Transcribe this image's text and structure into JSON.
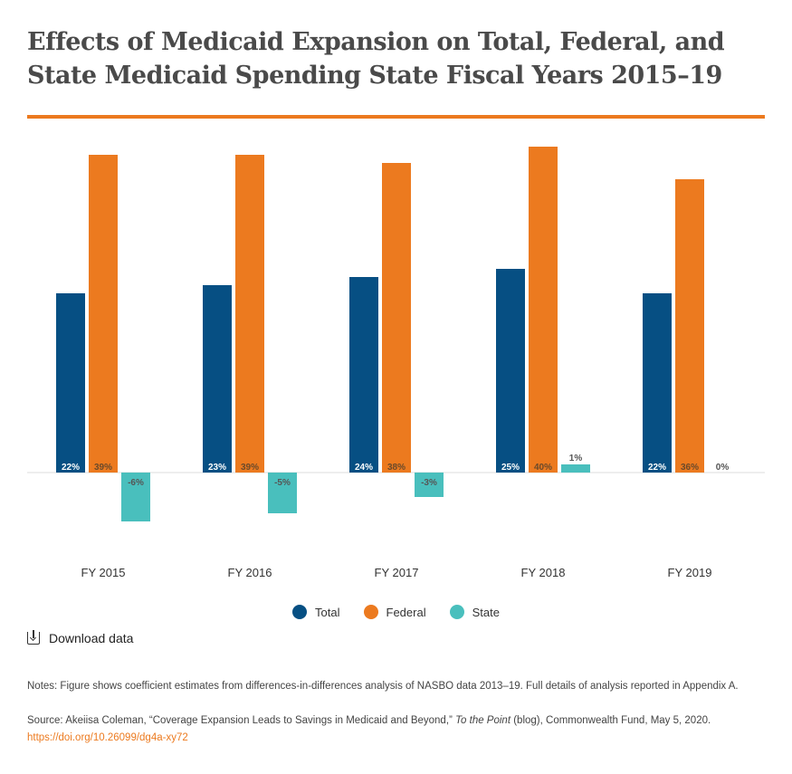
{
  "title": "Effects of Medicaid Expansion on Total, Federal, and State Medicaid Spending State Fiscal Years 2015–19",
  "colors": {
    "total": "#064f83",
    "federal": "#ec7a1f",
    "state": "#49bfbd",
    "accent_rule": "#ec7a1f"
  },
  "chart_data": {
    "type": "bar",
    "categories": [
      "FY 2015",
      "FY 2016",
      "FY 2017",
      "FY 2018",
      "FY 2019"
    ],
    "series": [
      {
        "name": "Total",
        "values": [
          22,
          23,
          24,
          25,
          22
        ],
        "labels": [
          "22%",
          "23%",
          "24%",
          "25%",
          "22%"
        ]
      },
      {
        "name": "Federal",
        "values": [
          39,
          39,
          38,
          40,
          36
        ],
        "labels": [
          "39%",
          "39%",
          "38%",
          "40%",
          "36%"
        ]
      },
      {
        "name": "State",
        "values": [
          -6,
          -5,
          -3,
          1,
          0
        ],
        "labels": [
          "-6%",
          "-5%",
          "-3%",
          "1%",
          "0%"
        ]
      }
    ],
    "ylim": [
      -8,
      41
    ],
    "legend_position": "bottom-center"
  },
  "legend": [
    {
      "label": "Total",
      "color": "#064f83"
    },
    {
      "label": "Federal",
      "color": "#ec7a1f"
    },
    {
      "label": "State",
      "color": "#49bfbd"
    }
  ],
  "download": {
    "label": "Download data",
    "icon": "download-icon"
  },
  "notes": "Notes: Figure shows coefficient estimates from differences-in-differences analysis of NASBO data 2013–19. Full details of analysis reported in Appendix A.",
  "source": {
    "prefix": "Source:  Akeiisa Coleman, “Coverage Expansion Leads to Savings in Medicaid and Beyond,” ",
    "publication": "To the Point",
    "suffix": " (blog), Commonwealth Fund, May 5, 2020. ",
    "link": "https://doi.org/10.26099/dg4a-xy72"
  }
}
